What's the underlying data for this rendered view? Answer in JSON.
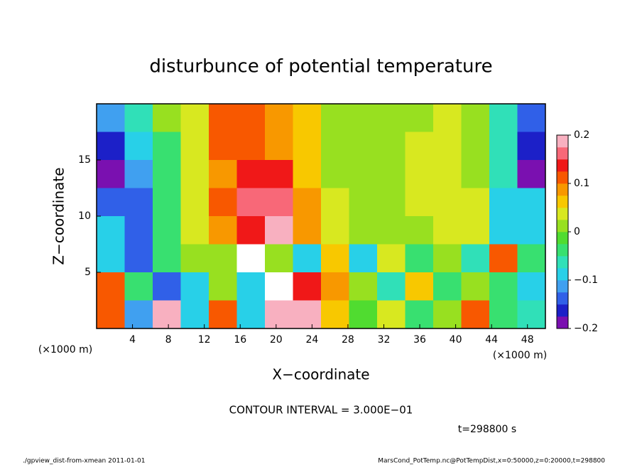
{
  "chart_data": {
    "type": "heatmap",
    "title": "disturbunce of potential temperature",
    "x_label": "X−coordinate",
    "y_label": "Z−coordinate",
    "x_unit": "(×1000 m)",
    "xlim": [
      0,
      50
    ],
    "ylim": [
      0,
      20
    ],
    "xticks": [
      4,
      8,
      12,
      16,
      20,
      24,
      28,
      32,
      36,
      40,
      44,
      48
    ],
    "yticks": [
      5,
      10,
      15
    ],
    "z": [
      [
        -0.12,
        -0.06,
        0.0,
        0.03,
        0.12,
        0.1,
        0.08,
        0.06,
        0.02,
        0.0,
        0.0,
        0.02,
        0.03,
        0.01,
        -0.06,
        -0.14
      ],
      [
        -0.16,
        -0.1,
        -0.03,
        0.03,
        0.1,
        0.1,
        0.09,
        0.06,
        0.02,
        0.0,
        0.01,
        0.04,
        0.04,
        0.02,
        -0.06,
        -0.16
      ],
      [
        -0.2,
        -0.12,
        -0.04,
        0.03,
        0.09,
        0.14,
        0.13,
        0.07,
        0.02,
        0.0,
        0.01,
        0.04,
        0.04,
        0.02,
        -0.07,
        -0.18
      ],
      [
        -0.14,
        -0.14,
        -0.04,
        0.04,
        0.1,
        0.16,
        0.16,
        0.09,
        0.03,
        0.0,
        0.01,
        0.04,
        0.04,
        0.03,
        -0.08,
        -0.1
      ],
      [
        -0.08,
        -0.14,
        -0.04,
        0.03,
        0.09,
        0.15,
        0.19,
        0.08,
        0.03,
        0.01,
        0.01,
        0.02,
        0.03,
        0.03,
        -0.1,
        -0.08
      ],
      [
        -0.1,
        -0.13,
        -0.05,
        0.0,
        0.0,
        0.21,
        0.0,
        -0.08,
        0.05,
        -0.1,
        0.03,
        -0.03,
        0.0,
        -0.06,
        0.12,
        -0.04
      ],
      [
        0.12,
        -0.03,
        -0.15,
        -0.1,
        0.0,
        -0.08,
        0.25,
        0.13,
        0.08,
        0.0,
        -0.06,
        0.05,
        -0.05,
        0.0,
        -0.05,
        -0.08
      ],
      [
        0.1,
        -0.12,
        0.2,
        -0.1,
        0.12,
        -0.1,
        0.18,
        0.2,
        0.05,
        -0.02,
        0.03,
        -0.05,
        0.0,
        0.12,
        -0.03,
        -0.06
      ]
    ],
    "colorbar": {
      "lim": [
        -0.2,
        0.2
      ],
      "ticks": [
        {
          "value": -0.2,
          "label": "−0.2"
        },
        {
          "value": -0.1,
          "label": "−0.1"
        },
        0,
        0.1,
        0.2
      ],
      "colors": [
        "#7a10b0",
        "#1c20c8",
        "#3060e8",
        "#40a0f0",
        "#28d0e8",
        "#30e0b8",
        "#38e070",
        "#50dc30",
        "#98e020",
        "#d8e820",
        "#f8c800",
        "#f89800",
        "#f85800",
        "#f01818",
        "#f86878",
        "#f8b0c0"
      ]
    },
    "contour_note": "CONTOUR INTERVAL = 3.000E−01",
    "time_label": "t=298800 s",
    "footer_left": "./gpview_dist-from-xmean  2011-01-01",
    "footer_right": "MarsCond_PotTemp.nc@PotTempDist,x=0:50000,z=0:20000,t=298800"
  }
}
